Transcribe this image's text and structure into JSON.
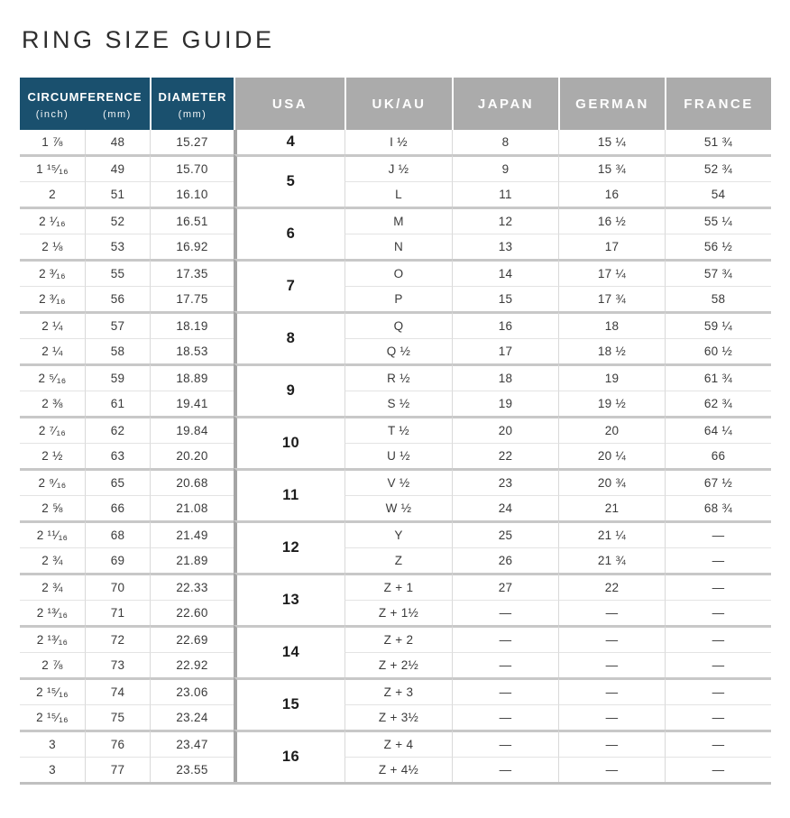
{
  "page": {
    "title": "RING SIZE GUIDE"
  },
  "colors": {
    "header_blue": "#1a506e",
    "header_gray": "#ababab",
    "header_text": "#ffffff",
    "title_color": "#2d2d2d",
    "body_text": "#3a3a3a",
    "usa_text": "#1c1c1c",
    "group_line": "#c8c8c8",
    "row_line": "#e3e3e3",
    "col_line": "#d9d9d9",
    "usa_divider": "#a5a5a5",
    "table_bottom": "#c0c0c0"
  },
  "header": {
    "circumference": {
      "label": "CIRCUMFERENCE",
      "sub_inch": "(inch)",
      "sub_mm": "(mm)"
    },
    "diameter": {
      "label": "DIAMETER",
      "sub": "(mm)"
    },
    "countries": [
      "USA",
      "UK/AU",
      "JAPAN",
      "GERMAN",
      "FRANCE"
    ]
  },
  "table": {
    "groups": [
      {
        "usa": "4",
        "rows": [
          {
            "inch": "1 ⅞",
            "mm": "48",
            "diameter": "15.27",
            "uk_au": "I ½",
            "japan": "8",
            "german": "15 ¼",
            "france": "51 ¾"
          }
        ]
      },
      {
        "usa": "5",
        "rows": [
          {
            "inch": "1 ¹⁵⁄₁₆",
            "mm": "49",
            "diameter": "15.70",
            "uk_au": "J ½",
            "japan": "9",
            "german": "15 ¾",
            "france": "52 ¾"
          },
          {
            "inch": "2",
            "mm": "51",
            "diameter": "16.10",
            "uk_au": "L",
            "japan": "11",
            "german": "16",
            "france": "54"
          }
        ]
      },
      {
        "usa": "6",
        "rows": [
          {
            "inch": "2 ¹⁄₁₆",
            "mm": "52",
            "diameter": "16.51",
            "uk_au": "M",
            "japan": "12",
            "german": "16 ½",
            "france": "55 ¼"
          },
          {
            "inch": "2 ⅛",
            "mm": "53",
            "diameter": "16.92",
            "uk_au": "N",
            "japan": "13",
            "german": "17",
            "france": "56 ½"
          }
        ]
      },
      {
        "usa": "7",
        "rows": [
          {
            "inch": "2 ³⁄₁₆",
            "mm": "55",
            "diameter": "17.35",
            "uk_au": "O",
            "japan": "14",
            "german": "17 ¼",
            "france": "57 ¾"
          },
          {
            "inch": "2 ³⁄₁₆",
            "mm": "56",
            "diameter": "17.75",
            "uk_au": "P",
            "japan": "15",
            "german": "17 ¾",
            "france": "58"
          }
        ]
      },
      {
        "usa": "8",
        "rows": [
          {
            "inch": "2 ¼",
            "mm": "57",
            "diameter": "18.19",
            "uk_au": "Q",
            "japan": "16",
            "german": "18",
            "france": "59 ¼"
          },
          {
            "inch": "2 ¼",
            "mm": "58",
            "diameter": "18.53",
            "uk_au": "Q ½",
            "japan": "17",
            "german": "18 ½",
            "france": "60 ½"
          }
        ]
      },
      {
        "usa": "9",
        "rows": [
          {
            "inch": "2 ⁵⁄₁₆",
            "mm": "59",
            "diameter": "18.89",
            "uk_au": "R ½",
            "japan": "18",
            "german": "19",
            "france": "61 ¾"
          },
          {
            "inch": "2 ⅜",
            "mm": "61",
            "diameter": "19.41",
            "uk_au": "S ½",
            "japan": "19",
            "german": "19 ½",
            "france": "62 ¾"
          }
        ]
      },
      {
        "usa": "10",
        "rows": [
          {
            "inch": "2 ⁷⁄₁₆",
            "mm": "62",
            "diameter": "19.84",
            "uk_au": "T ½",
            "japan": "20",
            "german": "20",
            "france": "64 ¼"
          },
          {
            "inch": "2 ½",
            "mm": "63",
            "diameter": "20.20",
            "uk_au": "U ½",
            "japan": "22",
            "german": "20 ¼",
            "france": "66"
          }
        ]
      },
      {
        "usa": "11",
        "rows": [
          {
            "inch": "2 ⁹⁄₁₆",
            "mm": "65",
            "diameter": "20.68",
            "uk_au": "V ½",
            "japan": "23",
            "german": "20 ¾",
            "france": "67 ½"
          },
          {
            "inch": "2 ⅝",
            "mm": "66",
            "diameter": "21.08",
            "uk_au": "W ½",
            "japan": "24",
            "german": "21",
            "france": "68 ¾"
          }
        ]
      },
      {
        "usa": "12",
        "rows": [
          {
            "inch": "2 ¹¹⁄₁₆",
            "mm": "68",
            "diameter": "21.49",
            "uk_au": "Y",
            "japan": "25",
            "german": "21 ¼",
            "france": "—"
          },
          {
            "inch": "2 ¾",
            "mm": "69",
            "diameter": "21.89",
            "uk_au": "Z",
            "japan": "26",
            "german": "21 ¾",
            "france": "—"
          }
        ]
      },
      {
        "usa": "13",
        "rows": [
          {
            "inch": "2 ¾",
            "mm": "70",
            "diameter": "22.33",
            "uk_au": "Z + 1",
            "japan": "27",
            "german": "22",
            "france": "—"
          },
          {
            "inch": "2 ¹³⁄₁₆",
            "mm": "71",
            "diameter": "22.60",
            "uk_au": "Z + 1½",
            "japan": "—",
            "german": "—",
            "france": "—"
          }
        ]
      },
      {
        "usa": "14",
        "rows": [
          {
            "inch": "2 ¹³⁄₁₆",
            "mm": "72",
            "diameter": "22.69",
            "uk_au": "Z + 2",
            "japan": "—",
            "german": "—",
            "france": "—"
          },
          {
            "inch": "2 ⅞",
            "mm": "73",
            "diameter": "22.92",
            "uk_au": "Z + 2½",
            "japan": "—",
            "german": "—",
            "france": "—"
          }
        ]
      },
      {
        "usa": "15",
        "rows": [
          {
            "inch": "2 ¹⁵⁄₁₆",
            "mm": "74",
            "diameter": "23.06",
            "uk_au": "Z + 3",
            "japan": "—",
            "german": "—",
            "france": "—"
          },
          {
            "inch": "2 ¹⁵⁄₁₆",
            "mm": "75",
            "diameter": "23.24",
            "uk_au": "Z + 3½",
            "japan": "—",
            "german": "—",
            "france": "—"
          }
        ]
      },
      {
        "usa": "16",
        "rows": [
          {
            "inch": "3",
            "mm": "76",
            "diameter": "23.47",
            "uk_au": "Z + 4",
            "japan": "—",
            "german": "—",
            "france": "—"
          },
          {
            "inch": "3",
            "mm": "77",
            "diameter": "23.55",
            "uk_au": "Z + 4½",
            "japan": "—",
            "german": "—",
            "france": "—"
          }
        ]
      }
    ]
  }
}
